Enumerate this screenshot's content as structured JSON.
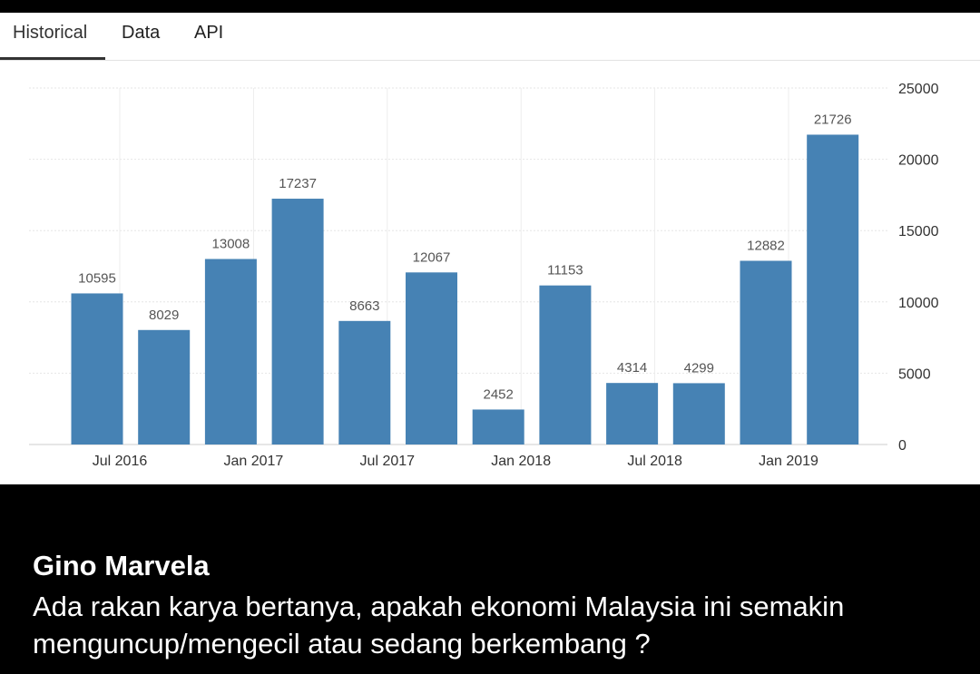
{
  "tabs": [
    {
      "label": "Historical",
      "active": true
    },
    {
      "label": "Data",
      "active": false
    },
    {
      "label": "API",
      "active": false
    }
  ],
  "chart_data": {
    "type": "bar",
    "title": "",
    "xlabel": "",
    "ylabel": "",
    "bar_color": "#4682B4",
    "grid": true,
    "ylim": [
      0,
      25000
    ],
    "y_ticks": [
      0,
      5000,
      10000,
      15000,
      20000,
      25000
    ],
    "x_tick_labels": [
      "Jul 2016",
      "Jan 2017",
      "Jul 2017",
      "Jan 2018",
      "Jul 2018",
      "Jan 2019"
    ],
    "values": [
      10595,
      8029,
      13008,
      17237,
      8663,
      12067,
      2452,
      11153,
      4314,
      4299,
      12882,
      21726
    ]
  },
  "post": {
    "author": "Gino Marvela",
    "text": "Ada rakan karya bertanya, apakah ekonomi Malaysia ini semakin menguncup/mengecil atau sedang berkembang ?"
  }
}
